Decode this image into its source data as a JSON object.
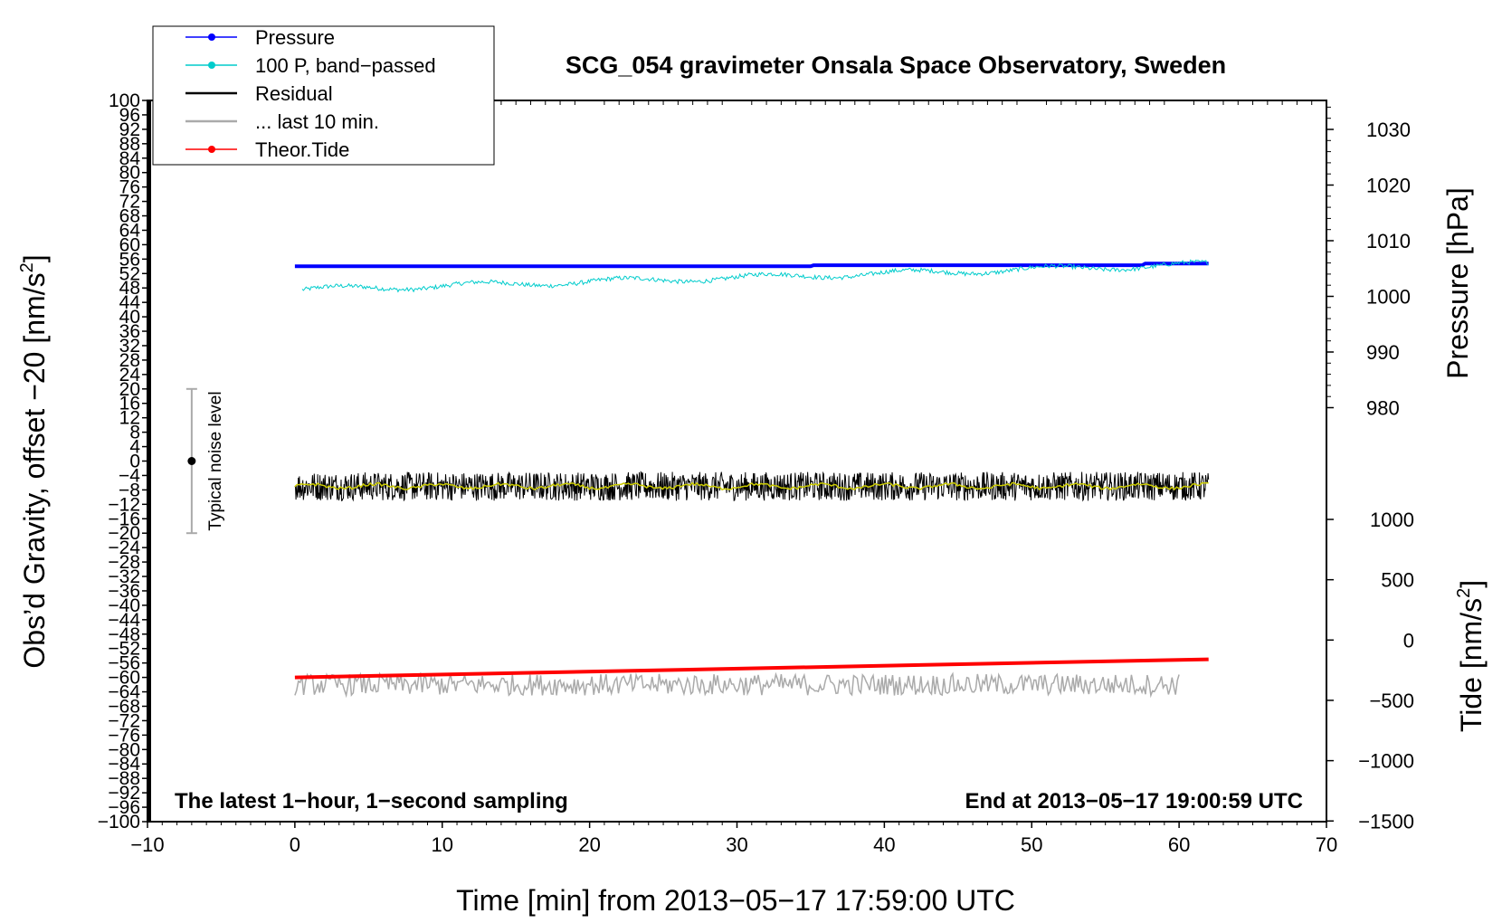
{
  "chart_data": {
    "type": "line",
    "title": "SCG_054 gravimeter Onsala Space Observatory, Sweden",
    "xlabel": "Time [min] from 2013−05−17 17:59:00 UTC",
    "ylabel_left": "Obs’d Gravity, offset −20 [nm/s",
    "ylabel_left_sup": "2",
    "ylabel_left_close": "]",
    "ylabel_right_pressure": "Pressure [hPa]",
    "ylabel_right_tide": "Tide [nm/s",
    "ylabel_right_tide_sup": "2",
    "ylabel_right_tide_close": "]",
    "xlim": [
      -10,
      70
    ],
    "x_ticks": [
      -10,
      0,
      10,
      20,
      30,
      40,
      50,
      60,
      70
    ],
    "x_tick_labels": [
      "−10",
      "0",
      "10",
      "20",
      "30",
      "40",
      "50",
      "60",
      "70"
    ],
    "ylim_left": [
      -100,
      100
    ],
    "left_ticks": [
      100,
      96,
      92,
      88,
      84,
      80,
      76,
      72,
      68,
      64,
      60,
      56,
      52,
      48,
      44,
      40,
      36,
      32,
      28,
      24,
      20,
      16,
      12,
      8,
      4,
      0,
      -4,
      -8,
      -12,
      -16,
      -20,
      -24,
      -28,
      -32,
      -36,
      -40,
      -44,
      -48,
      -52,
      -56,
      -60,
      -64,
      -68,
      -72,
      -76,
      -80,
      -84,
      -88,
      -92,
      -96,
      -100
    ],
    "pressure_ticks": [
      1030,
      1020,
      1010,
      1000,
      990,
      980
    ],
    "pressure_tick_labels": [
      "1030",
      "1020",
      "1010",
      "1000",
      "990",
      "980"
    ],
    "tide_ticks": [
      1000,
      500,
      0,
      -500,
      -1000,
      -1500
    ],
    "tide_tick_labels": [
      "1000",
      "500",
      "0",
      "−500",
      "−1000",
      "−1500"
    ],
    "legend": {
      "placement": "top-left",
      "entries": [
        {
          "label": "Pressure",
          "color": "#0000ff",
          "marker": true
        },
        {
          "label": "100 P, band−passed",
          "color": "#00cccc",
          "marker": true
        },
        {
          "label": "Residual",
          "color": "#000000",
          "marker": false
        },
        {
          "label": "... last 10 min.",
          "color": "#aaaaaa",
          "marker": false
        },
        {
          "label": "Theor.Tide",
          "color": "#ff0000",
          "marker": true
        }
      ]
    },
    "series": [
      {
        "name": "Pressure",
        "axis": "pressure",
        "color": "#0000ff",
        "x": [
          0,
          35,
          35.2,
          57.5,
          57.7,
          62
        ],
        "values": [
          1005.4,
          1005.4,
          1005.6,
          1005.6,
          1005.9,
          1005.9
        ]
      },
      {
        "name": "100 P, band−passed",
        "axis": "left",
        "color": "#00cccc",
        "x_range": [
          0.5,
          62
        ],
        "start": 47.5,
        "end": 54.5
      },
      {
        "name": "Residual",
        "axis": "left",
        "color": "#000000",
        "x_range": [
          0,
          62
        ],
        "level": -7,
        "spread": 4
      },
      {
        "name": "... last 10 min.",
        "axis": "left",
        "color": "#aaaaaa",
        "x_range": [
          0,
          60
        ],
        "level": -62,
        "spread": 3
      },
      {
        "name": "Theor.Tide",
        "axis": "tide",
        "color": "#ff0000",
        "x": [
          0,
          62
        ],
        "values": [
          -310,
          -160
        ]
      }
    ],
    "noise_bar": {
      "label": "Typical noise level",
      "x": -7,
      "center": 0,
      "half_range": 20
    },
    "notes": {
      "left": "The latest 1−hour, 1−second sampling",
      "right": "End at 2013−05−17 19:00:59 UTC"
    },
    "colors": {
      "filtered": "#cccc00"
    }
  }
}
